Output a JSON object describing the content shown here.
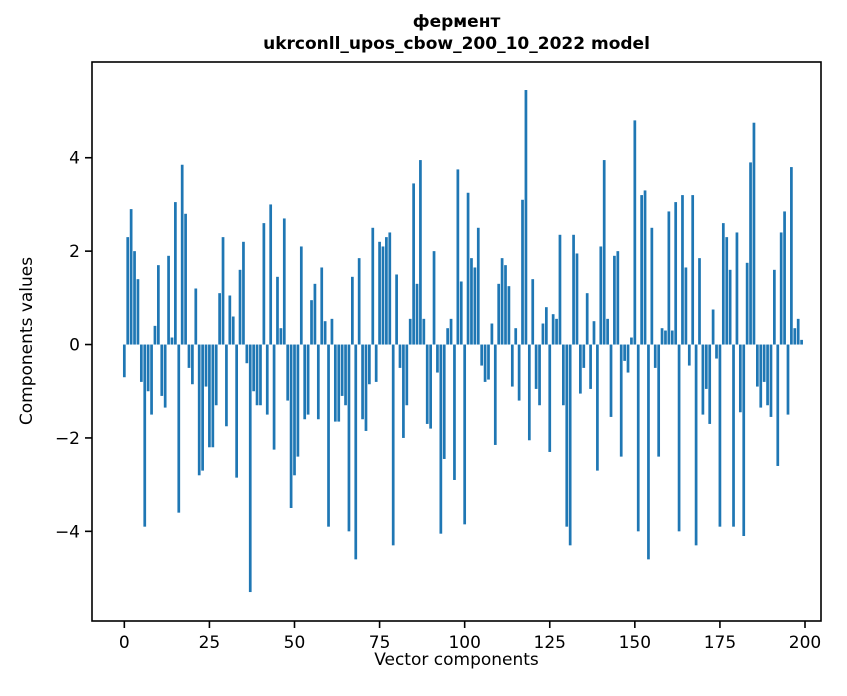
{
  "figure": {
    "background": "#ffffff"
  },
  "chart_data": {
    "type": "bar",
    "title": "фермент",
    "subtitle": "ukrconll_upos_cbow_200_10_2022 model",
    "xlabel": "Vector components",
    "ylabel": "Components values",
    "bar_color": "#1f77b4",
    "axis_color": "#000000",
    "n_components": 200,
    "grid": false,
    "legend_position": "none",
    "xlim": [
      -9.5,
      204.7
    ],
    "ylim": [
      -5.92,
      6.05
    ],
    "bar_width_units": 0.8,
    "xticks": [
      0,
      25,
      50,
      75,
      100,
      125,
      150,
      175,
      200
    ],
    "xtick_labels": [
      "0",
      "25",
      "50",
      "75",
      "100",
      "125",
      "150",
      "175",
      "200"
    ],
    "yticks": [
      -4,
      -2,
      0,
      2,
      4
    ],
    "ytick_labels": [
      "−4",
      "−2",
      "0",
      "2",
      "4"
    ],
    "values": [
      -0.7,
      2.3,
      2.9,
      2.0,
      1.4,
      -0.8,
      -3.9,
      -1.0,
      -1.5,
      0.4,
      1.7,
      -1.1,
      -1.35,
      1.9,
      0.15,
      3.05,
      -3.6,
      3.85,
      2.8,
      -0.5,
      -0.85,
      1.2,
      -2.8,
      -2.7,
      -0.9,
      -2.2,
      -2.2,
      -1.3,
      1.1,
      2.3,
      -1.75,
      1.05,
      0.6,
      -2.85,
      1.6,
      2.2,
      -0.4,
      -5.3,
      -1.0,
      -1.3,
      -1.3,
      2.6,
      -1.5,
      3.0,
      -2.25,
      1.45,
      0.35,
      2.7,
      -1.2,
      -3.5,
      -2.8,
      -2.4,
      2.1,
      -1.6,
      -1.5,
      0.95,
      1.3,
      -1.6,
      1.65,
      0.5,
      -3.9,
      0.55,
      -1.65,
      -1.65,
      -1.1,
      -1.3,
      -4.0,
      1.45,
      -4.6,
      1.85,
      -1.6,
      -1.85,
      -0.85,
      2.5,
      -0.8,
      2.2,
      2.1,
      2.3,
      2.4,
      -4.3,
      1.5,
      -0.5,
      -2.0,
      -1.3,
      0.55,
      3.45,
      1.3,
      3.95,
      0.55,
      -1.7,
      -1.8,
      2.0,
      -0.6,
      -4.05,
      -2.45,
      0.35,
      0.55,
      -2.9,
      3.75,
      1.35,
      -3.85,
      3.25,
      1.85,
      1.65,
      2.5,
      -0.45,
      -0.8,
      -0.75,
      0.45,
      -2.15,
      1.3,
      1.85,
      1.7,
      1.25,
      -0.9,
      0.35,
      -1.2,
      3.1,
      5.45,
      -2.05,
      1.4,
      -0.95,
      -1.3,
      0.45,
      0.8,
      -2.3,
      0.65,
      0.55,
      2.35,
      -1.3,
      -3.9,
      -4.3,
      2.35,
      1.95,
      -1.05,
      -0.5,
      1.1,
      -0.95,
      0.5,
      -2.7,
      2.1,
      3.95,
      0.55,
      -1.55,
      1.9,
      2.0,
      -2.4,
      -0.35,
      -0.6,
      0.15,
      4.8,
      -4.0,
      3.2,
      3.3,
      -4.6,
      2.5,
      -0.5,
      -2.4,
      0.35,
      0.3,
      2.85,
      0.3,
      3.05,
      -4.0,
      3.2,
      1.65,
      -0.45,
      3.2,
      -4.3,
      1.85,
      -1.5,
      -0.95,
      -1.7,
      0.75,
      -0.3,
      -3.9,
      2.6,
      2.3,
      1.6,
      -3.9,
      2.4,
      -1.45,
      -4.1,
      1.75,
      3.9,
      4.75,
      -0.9,
      -1.35,
      -0.8,
      -1.3,
      -1.55,
      1.6,
      -2.6,
      2.4,
      2.85,
      -1.5,
      3.8,
      0.35,
      0.55,
      0.1
    ]
  }
}
